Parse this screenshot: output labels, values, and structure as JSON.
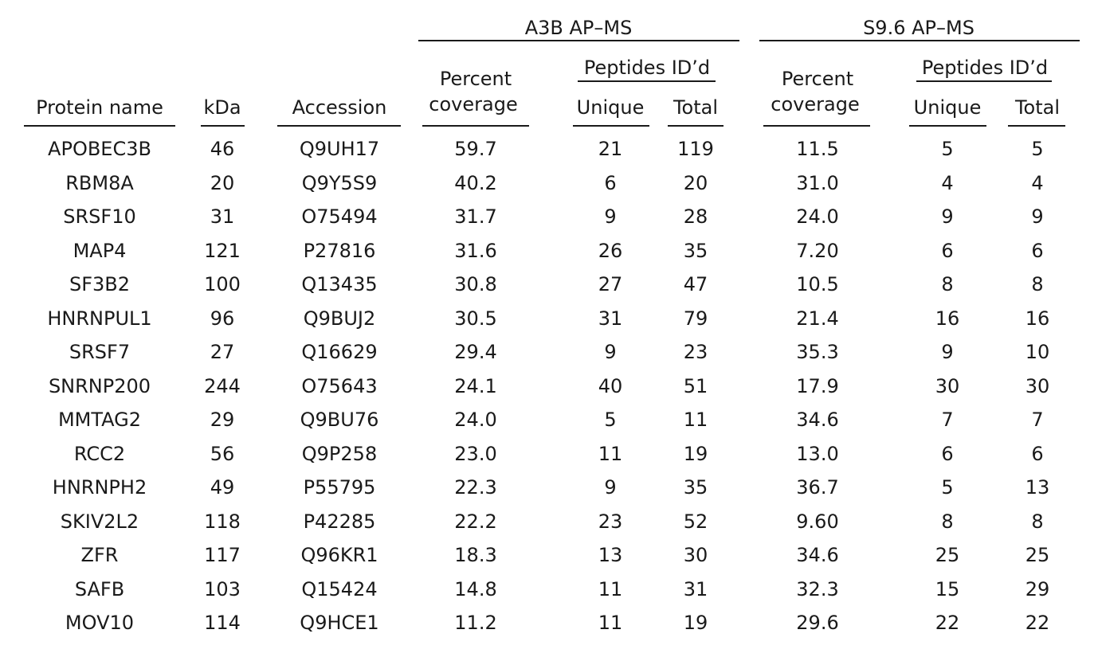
{
  "groups": {
    "a3b": "A3B AP–MS",
    "s96": "S9.6 AP–MS"
  },
  "headers": {
    "protein": "Protein name",
    "kda": "kDa",
    "accession": "Accession",
    "a3b_percent_1": "Percent",
    "a3b_percent_2": "coverage",
    "a3b_peptides": "Peptides ID’d",
    "a3b_unique": "Unique",
    "a3b_total": "Total",
    "s96_percent_1": "Percent",
    "s96_percent_2": "coverage",
    "s96_peptides": "Peptides ID’d",
    "s96_unique": "Unique",
    "s96_total": "Total"
  },
  "rows": [
    [
      "APOBEC3B",
      "46",
      "Q9UH17",
      "59.7",
      "21",
      "119",
      "11.5",
      "5",
      "5"
    ],
    [
      "RBM8A",
      "20",
      "Q9Y5S9",
      "40.2",
      "6",
      "20",
      "31.0",
      "4",
      "4"
    ],
    [
      "SRSF10",
      "31",
      "O75494",
      "31.7",
      "9",
      "28",
      "24.0",
      "9",
      "9"
    ],
    [
      "MAP4",
      "121",
      "P27816",
      "31.6",
      "26",
      "35",
      "7.20",
      "6",
      "6"
    ],
    [
      "SF3B2",
      "100",
      "Q13435",
      "30.8",
      "27",
      "47",
      "10.5",
      "8",
      "8"
    ],
    [
      "HNRNPUL1",
      "96",
      "Q9BUJ2",
      "30.5",
      "31",
      "79",
      "21.4",
      "16",
      "16"
    ],
    [
      "SRSF7",
      "27",
      "Q16629",
      "29.4",
      "9",
      "23",
      "35.3",
      "9",
      "10"
    ],
    [
      "SNRNP200",
      "244",
      "O75643",
      "24.1",
      "40",
      "51",
      "17.9",
      "30",
      "30"
    ],
    [
      "MMTAG2",
      "29",
      "Q9BU76",
      "24.0",
      "5",
      "11",
      "34.6",
      "7",
      "7"
    ],
    [
      "RCC2",
      "56",
      "Q9P258",
      "23.0",
      "11",
      "19",
      "13.0",
      "6",
      "6"
    ],
    [
      "HNRNPH2",
      "49",
      "P55795",
      "22.3",
      "9",
      "35",
      "36.7",
      "5",
      "13"
    ],
    [
      "SKIV2L2",
      "118",
      "P42285",
      "22.2",
      "23",
      "52",
      "9.60",
      "8",
      "8"
    ],
    [
      "ZFR",
      "117",
      "Q96KR1",
      "18.3",
      "13",
      "30",
      "34.6",
      "25",
      "25"
    ],
    [
      "SAFB",
      "103",
      "Q15424",
      "14.8",
      "11",
      "31",
      "32.3",
      "15",
      "29"
    ],
    [
      "MOV10",
      "114",
      "Q9HCE1",
      "11.2",
      "11",
      "19",
      "29.6",
      "22",
      "22"
    ]
  ]
}
